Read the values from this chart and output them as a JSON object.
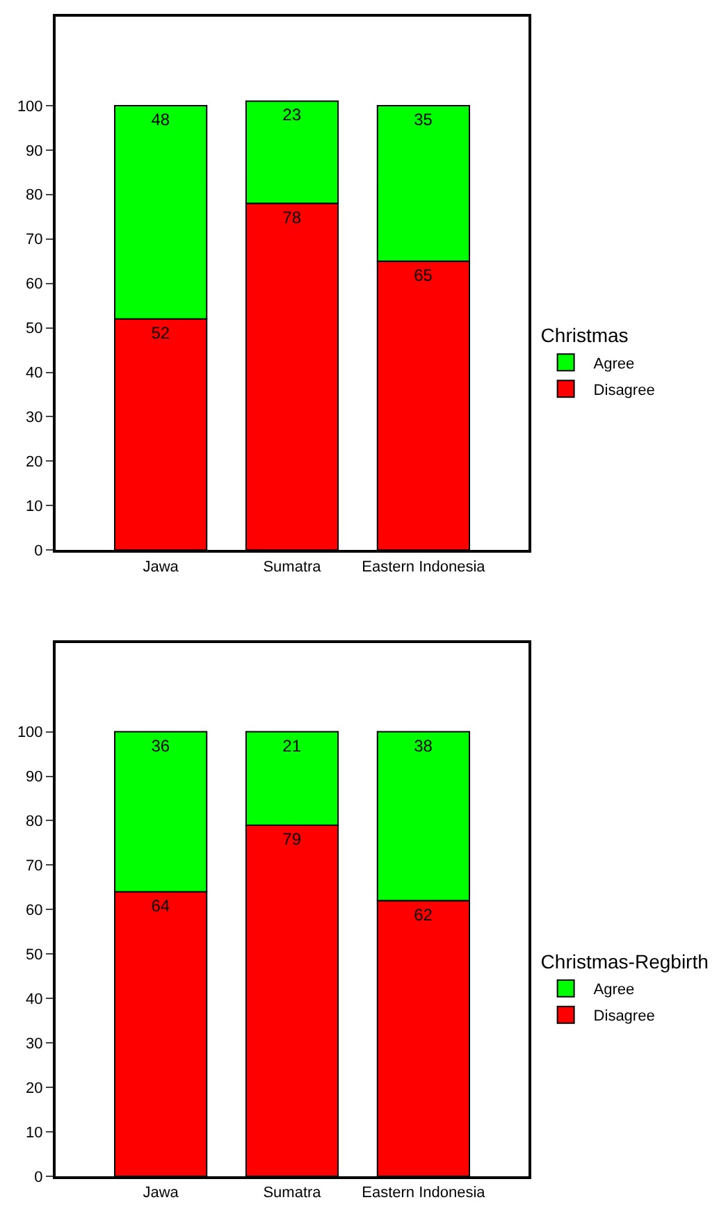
{
  "chart_data": [
    {
      "type": "bar",
      "stacked": true,
      "categories": [
        "Jawa",
        "Sumatra",
        "Eastern Indonesia"
      ],
      "series": [
        {
          "name": "Disagree",
          "color": "#ff0000",
          "values": [
            52,
            78,
            65
          ]
        },
        {
          "name": "Agree",
          "color": "#00ff00",
          "values": [
            48,
            23,
            35
          ]
        }
      ],
      "ylim": [
        0,
        120
      ],
      "yticks": [
        0,
        10,
        20,
        30,
        40,
        50,
        60,
        70,
        80,
        90,
        100
      ],
      "data_labels": true,
      "legend": "right",
      "legend_title": "Christmas"
    },
    {
      "type": "bar",
      "stacked": true,
      "categories": [
        "Jawa",
        "Sumatra",
        "Eastern Indonesia"
      ],
      "series": [
        {
          "name": "Disagree",
          "color": "#ff0000",
          "values": [
            64,
            79,
            62
          ]
        },
        {
          "name": "Agree",
          "color": "#00ff00",
          "values": [
            36,
            21,
            38
          ]
        }
      ],
      "ylim": [
        0,
        120
      ],
      "yticks": [
        0,
        10,
        20,
        30,
        40,
        50,
        60,
        70,
        80,
        90,
        100
      ],
      "data_labels": true,
      "legend": "right",
      "legend_title": "Christmas-Regbirth"
    }
  ]
}
